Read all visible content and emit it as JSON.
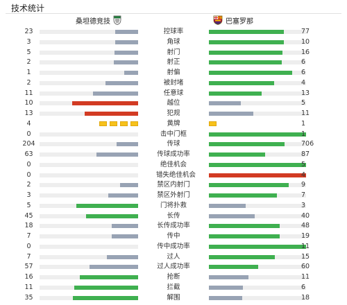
{
  "section_title": "技术统计",
  "teams": {
    "home": {
      "name": "桑坦德竞技",
      "icon": "racing-santander-crest-icon"
    },
    "away": {
      "name": "巴塞罗那",
      "icon": "fc-barcelona-crest-icon"
    }
  },
  "colors": {
    "green": "#3fb050",
    "gray": "#98a3b4",
    "red": "#d23b23",
    "yellow": "#f7c21b",
    "track": "#eeeeee"
  },
  "stats": [
    {
      "label": "控球率",
      "home": "23",
      "away": "77",
      "home_fill": 0.23,
      "away_fill": 0.77,
      "home_color": "gray",
      "away_color": "green"
    },
    {
      "label": "角球",
      "home": "3",
      "away": "10",
      "home_fill": 0.23,
      "away_fill": 0.77,
      "home_color": "gray",
      "away_color": "green"
    },
    {
      "label": "射门",
      "home": "5",
      "away": "16",
      "home_fill": 0.24,
      "away_fill": 0.76,
      "home_color": "gray",
      "away_color": "green"
    },
    {
      "label": "射正",
      "home": "2",
      "away": "6",
      "home_fill": 0.25,
      "away_fill": 0.75,
      "home_color": "gray",
      "away_color": "green"
    },
    {
      "label": "射偏",
      "home": "1",
      "away": "6",
      "home_fill": 0.14,
      "away_fill": 0.86,
      "home_color": "gray",
      "away_color": "green"
    },
    {
      "label": "被封堵",
      "home": "2",
      "away": "4",
      "home_fill": 0.33,
      "away_fill": 0.67,
      "home_color": "gray",
      "away_color": "green"
    },
    {
      "label": "任意球",
      "home": "11",
      "away": "13",
      "home_fill": 0.46,
      "away_fill": 0.54,
      "home_color": "gray",
      "away_color": "green"
    },
    {
      "label": "越位",
      "home": "10",
      "away": "5",
      "home_fill": 0.67,
      "away_fill": 0.33,
      "home_color": "red",
      "away_color": "gray"
    },
    {
      "label": "犯规",
      "home": "13",
      "away": "11",
      "home_fill": 0.54,
      "away_fill": 0.46,
      "home_color": "red",
      "away_color": "gray"
    },
    {
      "label": "黄牌",
      "home": "4",
      "away": "1",
      "home_cards": 4,
      "away_cards": 1
    },
    {
      "label": "击中门框",
      "home": "0",
      "away": "1",
      "home_fill": 0,
      "away_fill": 1,
      "home_color": "gray",
      "away_color": "green"
    },
    {
      "label": "传球",
      "home": "204",
      "away": "706",
      "home_fill": 0.22,
      "away_fill": 0.78,
      "home_color": "gray",
      "away_color": "green"
    },
    {
      "label": "传球成功率",
      "home": "63",
      "away": "87",
      "home_fill": 0.42,
      "away_fill": 0.58,
      "home_color": "gray",
      "away_color": "green"
    },
    {
      "label": "绝佳机会",
      "home": "0",
      "away": "5",
      "home_fill": 0,
      "away_fill": 1,
      "home_color": "gray",
      "away_color": "green"
    },
    {
      "label": "错失绝佳机会",
      "home": "0",
      "away": "4",
      "home_fill": 0,
      "away_fill": 1,
      "home_color": "gray",
      "away_color": "red"
    },
    {
      "label": "禁区内射门",
      "home": "2",
      "away": "9",
      "home_fill": 0.18,
      "away_fill": 0.82,
      "home_color": "gray",
      "away_color": "green"
    },
    {
      "label": "禁区外射门",
      "home": "3",
      "away": "7",
      "home_fill": 0.3,
      "away_fill": 0.7,
      "home_color": "gray",
      "away_color": "green"
    },
    {
      "label": "门将扑救",
      "home": "5",
      "away": "3",
      "home_fill": 0.625,
      "away_fill": 0.375,
      "home_color": "green",
      "away_color": "gray"
    },
    {
      "label": "长传",
      "home": "45",
      "away": "40",
      "home_fill": 0.53,
      "away_fill": 0.47,
      "home_color": "green",
      "away_color": "gray"
    },
    {
      "label": "长传成功率",
      "home": "18",
      "away": "48",
      "home_fill": 0.27,
      "away_fill": 0.73,
      "home_color": "gray",
      "away_color": "green"
    },
    {
      "label": "传中",
      "home": "7",
      "away": "19",
      "home_fill": 0.27,
      "away_fill": 0.73,
      "home_color": "gray",
      "away_color": "green"
    },
    {
      "label": "传中成功率",
      "home": "0",
      "away": "11",
      "home_fill": 0,
      "away_fill": 1,
      "home_color": "gray",
      "away_color": "green"
    },
    {
      "label": "过人",
      "home": "7",
      "away": "15",
      "home_fill": 0.32,
      "away_fill": 0.68,
      "home_color": "gray",
      "away_color": "green"
    },
    {
      "label": "过人成功率",
      "home": "57",
      "away": "60",
      "home_fill": 0.49,
      "away_fill": 0.51,
      "home_color": "gray",
      "away_color": "green"
    },
    {
      "label": "抢断",
      "home": "16",
      "away": "11",
      "home_fill": 0.59,
      "away_fill": 0.41,
      "home_color": "green",
      "away_color": "gray"
    },
    {
      "label": "拦截",
      "home": "11",
      "away": "6",
      "home_fill": 0.65,
      "away_fill": 0.35,
      "home_color": "green",
      "away_color": "gray"
    },
    {
      "label": "解围",
      "home": "35",
      "away": "18",
      "home_fill": 0.66,
      "away_fill": 0.34,
      "home_color": "green",
      "away_color": "gray"
    }
  ]
}
